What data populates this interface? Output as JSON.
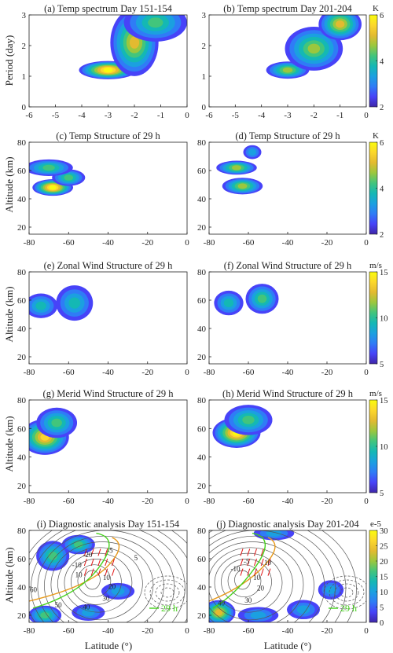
{
  "figure": {
    "ylabel_period": "Period (day)",
    "ylabel_altitude": "Altitude (km)",
    "xlabel_latitude": "Latitude (°)"
  },
  "colormap": {
    "stops": [
      "#3e26a8",
      "#4743f8",
      "#2f7cf6",
      "#1ba0e0",
      "#14b8b4",
      "#42c57c",
      "#9bc73e",
      "#e3ba30",
      "#fcd72c",
      "#f9fb0e"
    ]
  },
  "chart_data": [
    {
      "id": "a",
      "type": "heatmap",
      "title": "(a) Temp spectrum Day 151-154",
      "xlabel": "",
      "ylabel": "Period (day)",
      "xlim": [
        -6,
        0
      ],
      "ylim": [
        0,
        3
      ],
      "xticks": [
        -6,
        -5,
        -4,
        -3,
        -2,
        -1,
        0
      ],
      "yticks": [
        0,
        1,
        2,
        3
      ],
      "colorbar": null,
      "blobs": [
        {
          "x": -3.0,
          "y": 1.2,
          "sx": 0.55,
          "sy": 0.13,
          "v": 1.0
        },
        {
          "x": -2.0,
          "y": 2.1,
          "sx": 0.45,
          "sy": 0.55,
          "v": 0.8
        },
        {
          "x": -1.2,
          "y": 2.75,
          "sx": 0.6,
          "sy": 0.3,
          "v": 0.55
        }
      ]
    },
    {
      "id": "b",
      "type": "heatmap",
      "title": "(b) Temp spectrum Day 201-204",
      "xlabel": "",
      "ylabel": "",
      "xlim": [
        -6,
        0
      ],
      "ylim": [
        0,
        3
      ],
      "xticks": [
        -6,
        -5,
        -4,
        -3,
        -2,
        -1,
        0
      ],
      "yticks": [
        0,
        1,
        2,
        3
      ],
      "colorbar": {
        "unit": "K",
        "min": 2,
        "max": 6,
        "ticks": [
          2,
          4,
          6
        ]
      },
      "blobs": [
        {
          "x": -3.0,
          "y": 1.2,
          "sx": 0.4,
          "sy": 0.12,
          "v": 0.7
        },
        {
          "x": -2.0,
          "y": 1.9,
          "sx": 0.55,
          "sy": 0.35,
          "v": 0.7
        },
        {
          "x": -1.0,
          "y": 2.7,
          "sx": 0.4,
          "sy": 0.25,
          "v": 0.75
        }
      ]
    },
    {
      "id": "c",
      "type": "heatmap",
      "title": "(c) Temp Structure of 29 h",
      "xlabel": "",
      "ylabel": "Altitude (km)",
      "xlim": [
        -80,
        0
      ],
      "ylim": [
        15,
        80
      ],
      "xticks": [
        -80,
        -60,
        -40,
        -20,
        0
      ],
      "yticks": [
        20,
        40,
        60,
        80
      ],
      "colorbar": null,
      "blobs": [
        {
          "x": -68,
          "y": 48,
          "sx": 5,
          "sy": 2.5,
          "v": 1.0
        },
        {
          "x": -60,
          "y": 55,
          "sx": 4,
          "sy": 2.5,
          "v": 0.6
        },
        {
          "x": -70,
          "y": 62,
          "sx": 6,
          "sy": 2.5,
          "v": 0.6
        }
      ]
    },
    {
      "id": "d",
      "type": "heatmap",
      "title": "(d) Temp Structure of 29 h",
      "xlabel": "",
      "ylabel": "",
      "xlim": [
        -80,
        0
      ],
      "ylim": [
        15,
        80
      ],
      "xticks": [
        -80,
        -60,
        -40,
        -20,
        0
      ],
      "yticks": [
        20,
        40,
        60,
        80
      ],
      "colorbar": {
        "unit": "K",
        "min": 2,
        "max": 6,
        "ticks": [
          2,
          4,
          6
        ]
      },
      "blobs": [
        {
          "x": -63,
          "y": 49,
          "sx": 5,
          "sy": 2.5,
          "v": 0.7
        },
        {
          "x": -66,
          "y": 62,
          "sx": 5,
          "sy": 2,
          "v": 0.65
        },
        {
          "x": -58,
          "y": 73,
          "sx": 2,
          "sy": 2,
          "v": 0.35
        }
      ]
    },
    {
      "id": "e",
      "type": "heatmap",
      "title": "(e) Zonal Wind Structure of 29 h",
      "xlabel": "",
      "ylabel": "Altitude (km)",
      "xlim": [
        -80,
        0
      ],
      "ylim": [
        15,
        80
      ],
      "xticks": [
        -80,
        -60,
        -40,
        -20,
        0
      ],
      "yticks": [
        20,
        40,
        60,
        80
      ],
      "colorbar": null,
      "blobs": [
        {
          "x": -74,
          "y": 56,
          "sx": 4,
          "sy": 4,
          "v": 0.4
        },
        {
          "x": -57,
          "y": 58,
          "sx": 4.5,
          "sy": 6,
          "v": 0.45
        }
      ]
    },
    {
      "id": "f",
      "type": "heatmap",
      "title": "(f) Zonal Wind Structure of 29 h",
      "xlabel": "",
      "ylabel": "",
      "xlim": [
        -80,
        0
      ],
      "ylim": [
        15,
        80
      ],
      "xticks": [
        -80,
        -60,
        -40,
        -20,
        0
      ],
      "yticks": [
        20,
        40,
        60,
        80
      ],
      "colorbar": {
        "unit": "m/s",
        "min": 5,
        "max": 15,
        "ticks": [
          5,
          10,
          15
        ]
      },
      "blobs": [
        {
          "x": -70,
          "y": 58,
          "sx": 3.5,
          "sy": 4,
          "v": 0.45
        },
        {
          "x": -53,
          "y": 61,
          "sx": 4,
          "sy": 5,
          "v": 0.5
        }
      ]
    },
    {
      "id": "g",
      "type": "heatmap",
      "title": "(g) Merid Wind Structure of 29 h",
      "xlabel": "",
      "ylabel": "Altitude (km)",
      "xlim": [
        -80,
        0
      ],
      "ylim": [
        15,
        80
      ],
      "xticks": [
        -80,
        -60,
        -40,
        -20,
        0
      ],
      "yticks": [
        20,
        40,
        60,
        80
      ],
      "colorbar": null,
      "blobs": [
        {
          "x": -72,
          "y": 54,
          "sx": 6,
          "sy": 6,
          "v": 0.85
        },
        {
          "x": -66,
          "y": 64,
          "sx": 5,
          "sy": 5,
          "v": 0.5
        }
      ]
    },
    {
      "id": "h",
      "type": "heatmap",
      "title": "(h) Merid Wind Structure of 29 h",
      "xlabel": "",
      "ylabel": "",
      "xlim": [
        -80,
        0
      ],
      "ylim": [
        15,
        80
      ],
      "xticks": [
        -80,
        -60,
        -40,
        -20,
        0
      ],
      "yticks": [
        20,
        40,
        60,
        80
      ],
      "colorbar": {
        "unit": "m/s",
        "min": 5,
        "max": 15,
        "ticks": [
          5,
          10,
          15
        ]
      },
      "blobs": [
        {
          "x": -66,
          "y": 57,
          "sx": 6,
          "sy": 5,
          "v": 1.0
        },
        {
          "x": -60,
          "y": 66,
          "sx": 6,
          "sy": 5,
          "v": 0.55
        }
      ]
    },
    {
      "id": "i",
      "type": "heatmap",
      "title": "(i) Diagnostic analysis Day 151-154",
      "xlabel": "Latitude (°)",
      "ylabel": "Altitude (km)",
      "xlim": [
        -80,
        0
      ],
      "ylim": [
        15,
        80
      ],
      "xticks": [
        -80,
        -60,
        -40,
        -20,
        0
      ],
      "yticks": [
        20,
        40,
        60,
        80
      ],
      "colorbar": null,
      "blobs": [
        {
          "x": -68,
          "y": 62,
          "sx": 4,
          "sy": 5,
          "v": 0.55
        },
        {
          "x": -55,
          "y": 70,
          "sx": 4,
          "sy": 3,
          "v": 0.5
        },
        {
          "x": -72,
          "y": 20,
          "sx": 4,
          "sy": 3,
          "v": 0.6
        },
        {
          "x": -50,
          "y": 22,
          "sx": 4,
          "sy": 2.5,
          "v": 0.3
        },
        {
          "x": -35,
          "y": 37,
          "sx": 4,
          "sy": 2.5,
          "v": 0.35
        }
      ],
      "contour_labels": [
        "10",
        "20",
        "30",
        "40",
        "50",
        "60",
        "10",
        "-10",
        "-20",
        "-5",
        "5"
      ],
      "annotation": "29 h"
    },
    {
      "id": "j",
      "type": "heatmap",
      "title": "(j) Diagnostic analysis Day 201-204",
      "xlabel": "Latitude (°)",
      "ylabel": "",
      "xlim": [
        -80,
        0
      ],
      "ylim": [
        15,
        80
      ],
      "xticks": [
        -80,
        -60,
        -40,
        -20,
        0
      ],
      "yticks": [
        20,
        40,
        60,
        80
      ],
      "colorbar": {
        "unit": "e-5",
        "min": 0,
        "max": 30,
        "ticks": [
          0,
          5,
          10,
          15,
          20,
          25,
          30
        ]
      },
      "blobs": [
        {
          "x": -75,
          "y": 22,
          "sx": 4,
          "sy": 4,
          "v": 0.8
        },
        {
          "x": -55,
          "y": 20,
          "sx": 5,
          "sy": 2.5,
          "v": 0.3
        },
        {
          "x": -32,
          "y": 24,
          "sx": 4,
          "sy": 3,
          "v": 0.3
        },
        {
          "x": -47,
          "y": 78,
          "sx": 5,
          "sy": 2,
          "v": 0.3
        },
        {
          "x": -18,
          "y": 38,
          "sx": 3,
          "sy": 3,
          "v": 0.3
        }
      ],
      "contour_labels": [
        "10",
        "20",
        "30",
        "40",
        "50",
        "-20",
        "-10",
        "-5",
        "10"
      ],
      "annotation": "29 h"
    }
  ]
}
